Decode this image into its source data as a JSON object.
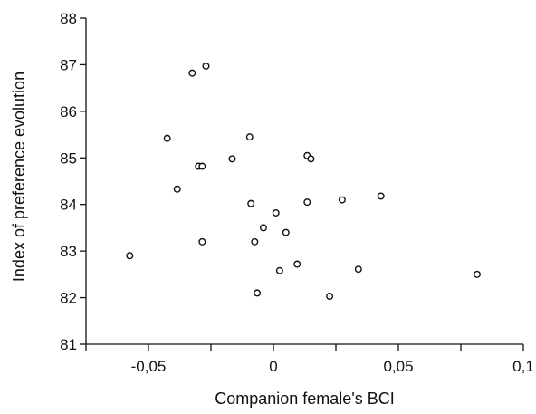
{
  "chart_data": {
    "type": "scatter",
    "xlabel": "Companion female's BCI",
    "ylabel": "Index of preference evolution",
    "xlim": [
      -0.075,
      0.1
    ],
    "ylim": [
      81,
      88
    ],
    "x_ticks": [
      -0.05,
      0,
      0.05,
      0.1
    ],
    "x_tick_labels": [
      "-0,05",
      "0",
      "0,05",
      "0,1"
    ],
    "y_ticks": [
      81,
      82,
      83,
      84,
      85,
      86,
      87,
      88
    ],
    "y_tick_labels": [
      "81",
      "82",
      "83",
      "84",
      "85",
      "86",
      "87",
      "88"
    ],
    "grid": false,
    "legend": "none",
    "points": [
      {
        "x": -0.0575,
        "y": 82.9
      },
      {
        "x": -0.0425,
        "y": 85.42
      },
      {
        "x": -0.0385,
        "y": 84.33
      },
      {
        "x": -0.0325,
        "y": 86.82
      },
      {
        "x": -0.03,
        "y": 84.82
      },
      {
        "x": -0.0285,
        "y": 84.82
      },
      {
        "x": -0.0285,
        "y": 83.2
      },
      {
        "x": -0.027,
        "y": 86.97
      },
      {
        "x": -0.0165,
        "y": 84.98
      },
      {
        "x": -0.0095,
        "y": 85.45
      },
      {
        "x": -0.009,
        "y": 84.02
      },
      {
        "x": -0.0075,
        "y": 83.2
      },
      {
        "x": -0.0065,
        "y": 82.1
      },
      {
        "x": -0.004,
        "y": 83.5
      },
      {
        "x": 0.001,
        "y": 83.82
      },
      {
        "x": 0.0025,
        "y": 82.58
      },
      {
        "x": 0.005,
        "y": 83.4
      },
      {
        "x": 0.0095,
        "y": 82.72
      },
      {
        "x": 0.0135,
        "y": 85.05
      },
      {
        "x": 0.0135,
        "y": 84.05
      },
      {
        "x": 0.015,
        "y": 84.98
      },
      {
        "x": 0.0225,
        "y": 82.03
      },
      {
        "x": 0.0275,
        "y": 84.1
      },
      {
        "x": 0.034,
        "y": 82.61
      },
      {
        "x": 0.043,
        "y": 84.18
      },
      {
        "x": 0.0815,
        "y": 82.5
      }
    ]
  }
}
